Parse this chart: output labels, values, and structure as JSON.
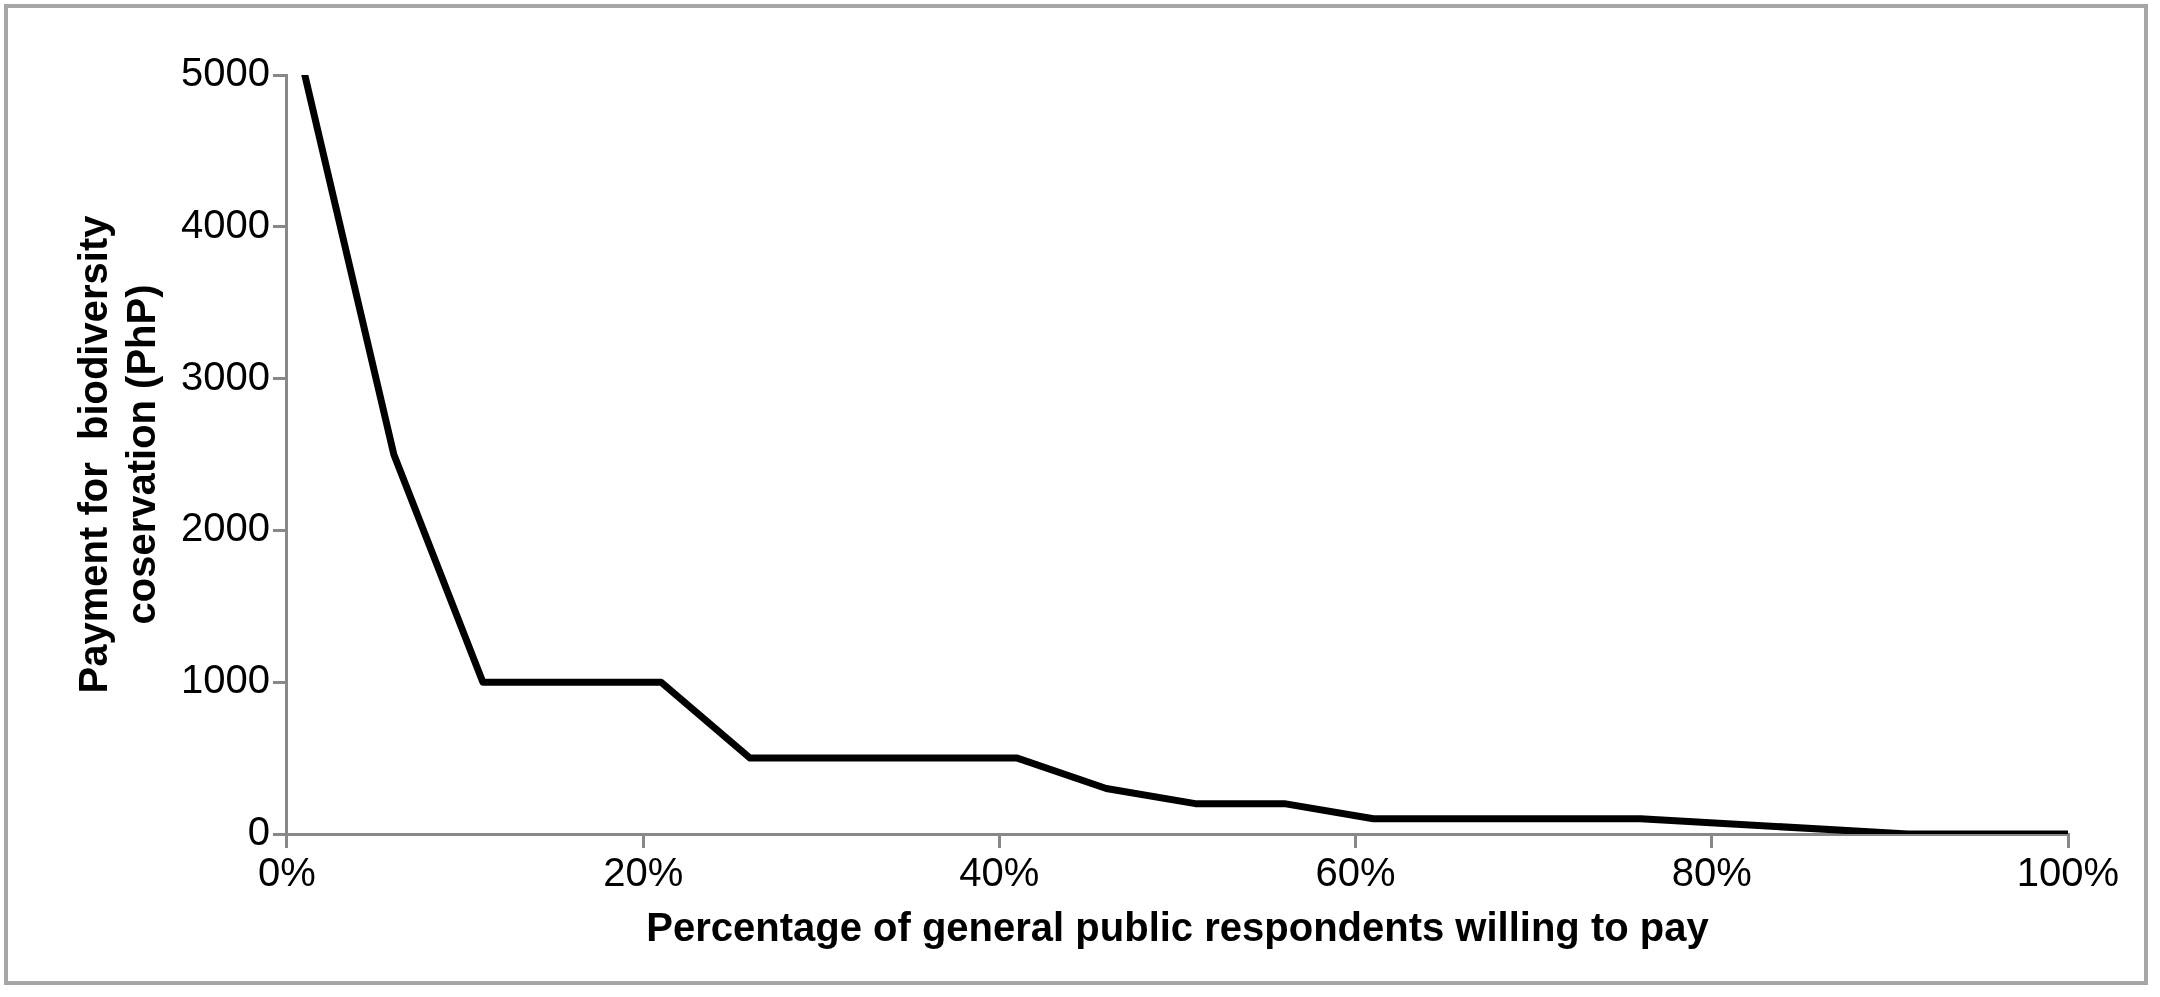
{
  "chart_data": {
    "type": "line",
    "xlabel": "Percentage of general public respondents willing to pay",
    "ylabel": "Payment for  biodiversity\ncoservation (PhP)",
    "x": [
      1,
      6,
      11,
      21,
      26,
      41,
      46,
      51,
      56,
      61,
      76,
      91,
      100
    ],
    "series": [
      {
        "color": "#000000",
        "values": [
          5000,
          2500,
          1000,
          1000,
          500,
          500,
          300,
          200,
          200,
          100,
          100,
          0,
          0
        ]
      }
    ],
    "xlim": [
      0,
      100
    ],
    "xticks": [
      {
        "value": 0,
        "label": "0%"
      },
      {
        "value": 20,
        "label": "20%"
      },
      {
        "value": 40,
        "label": "40%"
      },
      {
        "value": 60,
        "label": "60%"
      },
      {
        "value": 80,
        "label": "80%"
      },
      {
        "value": 100,
        "label": "100%"
      }
    ],
    "ylim": [
      0,
      5000
    ],
    "yticks": [
      0,
      1000,
      2000,
      3000,
      4000,
      5000
    ],
    "grid": false,
    "legend": false,
    "marker": "none",
    "line_style": "solid"
  }
}
